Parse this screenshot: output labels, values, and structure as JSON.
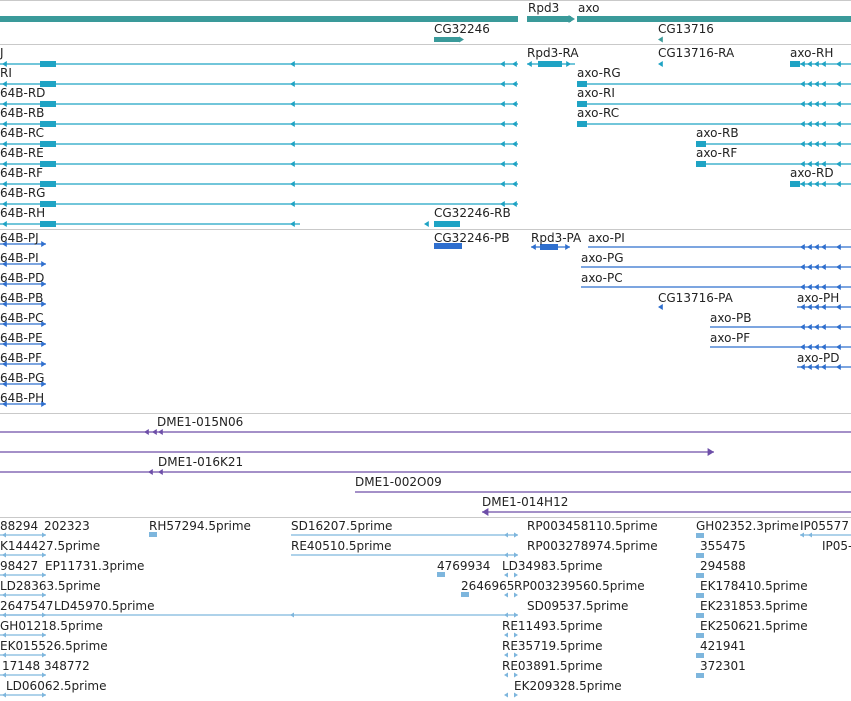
{
  "colors": {
    "gene": "#3a9a9a",
    "mrna": "#1fa3c4",
    "protein": "#2f6fce",
    "bac": "#6d4ea8",
    "est": "#7eb6dd",
    "separator": "#c9c9c9"
  },
  "tracks": {
    "gene": {
      "name": "gene-track",
      "labels": [
        {
          "id": "gene-rpd3",
          "text": "Rpd3"
        },
        {
          "id": "gene-axo",
          "text": "axo"
        },
        {
          "id": "gene-cg32246",
          "text": "CG32246"
        },
        {
          "id": "gene-cg13716",
          "text": "CG13716"
        }
      ]
    },
    "mrna": {
      "name": "mrna-track",
      "labels": [
        {
          "id": "m-j",
          "text": "J"
        },
        {
          "id": "m-rpd3-ra",
          "text": "Rpd3-RA"
        },
        {
          "id": "m-cg13716-ra",
          "text": "CG13716-RA"
        },
        {
          "id": "m-axo-rh",
          "text": "axo-RH"
        },
        {
          "id": "m-ri",
          "text": "RI"
        },
        {
          "id": "m-axo-rg",
          "text": "axo-RG"
        },
        {
          "id": "m-64b-rd",
          "text": "64B-RD"
        },
        {
          "id": "m-axo-ri",
          "text": "axo-RI"
        },
        {
          "id": "m-64b-rb",
          "text": "64B-RB"
        },
        {
          "id": "m-axo-rc",
          "text": "axo-RC"
        },
        {
          "id": "m-64b-rc",
          "text": "64B-RC"
        },
        {
          "id": "m-axo-rb",
          "text": "axo-RB"
        },
        {
          "id": "m-64b-re",
          "text": "64B-RE"
        },
        {
          "id": "m-axo-rf",
          "text": "axo-RF"
        },
        {
          "id": "m-64b-rf",
          "text": "64B-RF"
        },
        {
          "id": "m-axo-rd",
          "text": "axo-RD"
        },
        {
          "id": "m-64b-rg",
          "text": "64B-RG"
        },
        {
          "id": "m-64b-rh",
          "text": "64B-RH"
        },
        {
          "id": "m-cg32246-rb",
          "text": "CG32246-RB"
        }
      ]
    },
    "protein": {
      "name": "protein-track",
      "labels": [
        {
          "id": "p-64b-pj",
          "text": "64B-PJ"
        },
        {
          "id": "p-cg32246-pb",
          "text": "CG32246-PB"
        },
        {
          "id": "p-rpd3-pa",
          "text": "Rpd3-PA"
        },
        {
          "id": "p-axo-pi",
          "text": "axo-PI"
        },
        {
          "id": "p-64b-pi",
          "text": "64B-PI"
        },
        {
          "id": "p-axo-pg",
          "text": "axo-PG"
        },
        {
          "id": "p-64b-pd",
          "text": "64B-PD"
        },
        {
          "id": "p-axo-pc",
          "text": "axo-PC"
        },
        {
          "id": "p-64b-pb",
          "text": "64B-PB"
        },
        {
          "id": "p-cg13716-pa",
          "text": "CG13716-PA"
        },
        {
          "id": "p-axo-ph",
          "text": "axo-PH"
        },
        {
          "id": "p-64b-pc",
          "text": "64B-PC"
        },
        {
          "id": "p-axo-pb",
          "text": "axo-PB"
        },
        {
          "id": "p-64b-pe",
          "text": "64B-PE"
        },
        {
          "id": "p-axo-pf",
          "text": "axo-PF"
        },
        {
          "id": "p-64b-pf",
          "text": "64B-PF"
        },
        {
          "id": "p-axo-pd",
          "text": "axo-PD"
        },
        {
          "id": "p-64b-pg",
          "text": "64B-PG"
        },
        {
          "id": "p-64b-ph",
          "text": "64B-PH"
        }
      ]
    },
    "bac": {
      "name": "bac-track",
      "labels": [
        {
          "id": "b-015n06",
          "text": "DME1-015N06"
        },
        {
          "id": "b-016k21",
          "text": "DME1-016K21"
        },
        {
          "id": "b-002o09",
          "text": "DME1-002O09"
        },
        {
          "id": "b-014h12",
          "text": "DME1-014H12"
        }
      ]
    },
    "est": {
      "name": "est-track",
      "labels": [
        {
          "id": "e-88294",
          "text": "88294"
        },
        {
          "id": "e-202323",
          "text": "202323"
        },
        {
          "id": "e-rh57294",
          "text": "RH57294.5prime"
        },
        {
          "id": "e-sd16207",
          "text": "SD16207.5prime"
        },
        {
          "id": "e-rp003458110",
          "text": "RP003458110.5prime"
        },
        {
          "id": "e-gh02352",
          "text": "GH02352.3prime"
        },
        {
          "id": "e-ip05577",
          "text": "IP05577"
        },
        {
          "id": "e-k144427",
          "text": "K144427.5prime"
        },
        {
          "id": "e-re40510",
          "text": "RE40510.5prime"
        },
        {
          "id": "e-rp003278974",
          "text": "RP003278974.5prime"
        },
        {
          "id": "e-355475",
          "text": "355475"
        },
        {
          "id": "e-ip05b",
          "text": "IP05-"
        },
        {
          "id": "e-98427",
          "text": "98427"
        },
        {
          "id": "e-ep11731",
          "text": "EP11731.3prime"
        },
        {
          "id": "e-4769934",
          "text": "4769934"
        },
        {
          "id": "e-ld34983",
          "text": "LD34983.5prime"
        },
        {
          "id": "e-294588",
          "text": "294588"
        },
        {
          "id": "e-ld28363",
          "text": "LD28363.5prime"
        },
        {
          "id": "e-2646965",
          "text": "2646965"
        },
        {
          "id": "e-rp003239560",
          "text": "RP003239560.5prime"
        },
        {
          "id": "e-ek178410",
          "text": "EK178410.5prime"
        },
        {
          "id": "e-2647547",
          "text": "2647547"
        },
        {
          "id": "e-ld45970",
          "text": "LD45970.5prime"
        },
        {
          "id": "e-sd09537",
          "text": "SD09537.5prime"
        },
        {
          "id": "e-ek231853",
          "text": "EK231853.5prime"
        },
        {
          "id": "e-gh01218",
          "text": "GH01218.5prime"
        },
        {
          "id": "e-re11493",
          "text": "RE11493.5prime"
        },
        {
          "id": "e-ek250621",
          "text": "EK250621.5prime"
        },
        {
          "id": "e-ek015526",
          "text": "EK015526.5prime"
        },
        {
          "id": "e-re35719",
          "text": "RE35719.5prime"
        },
        {
          "id": "e-421941",
          "text": "421941"
        },
        {
          "id": "e-17148",
          "text": "17148"
        },
        {
          "id": "e-348772",
          "text": "348772"
        },
        {
          "id": "e-re03891",
          "text": "RE03891.5prime"
        },
        {
          "id": "e-372301",
          "text": "372301"
        },
        {
          "id": "e-ld06062",
          "text": "LD06062.5prime"
        },
        {
          "id": "e-ek209328",
          "text": "EK209328.5prime"
        }
      ]
    }
  }
}
